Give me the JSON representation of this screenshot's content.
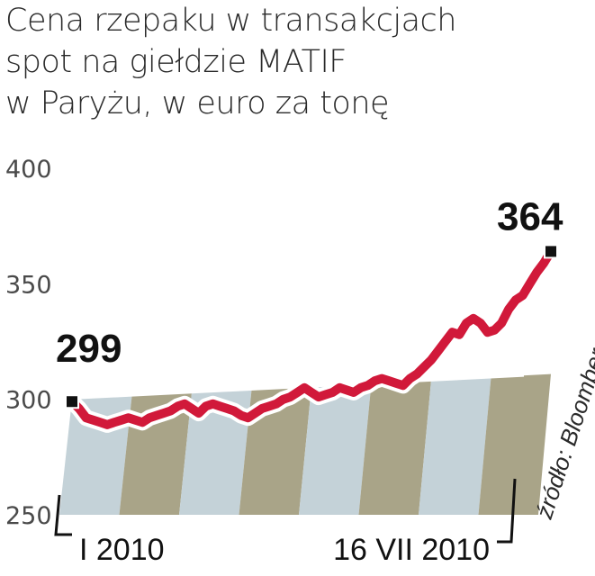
{
  "title_lines": [
    "Cena rzepaku w transakcjach",
    "spot na giełdzie MATIF",
    "w Paryżu, w euro za tonę"
  ],
  "source": "źródło: Bloomberg",
  "colors": {
    "line": "#d1193a",
    "marker": "#111111",
    "band_blue": "#c4d2d8",
    "band_olive": "#a9a488",
    "grid": "#ffffff",
    "axis": "#111111"
  },
  "chart_data": {
    "type": "line",
    "title": "Cena rzepaku w transakcjach spot na giełdzie MATIF w Paryżu, w euro za tonę",
    "ylim": [
      250,
      400
    ],
    "yticks": [
      400,
      350,
      300,
      250
    ],
    "x_labels": [
      "I 2010",
      "16 VII 2010"
    ],
    "start_label": "299",
    "end_label": "364",
    "series": [
      {
        "values": [
          299,
          296,
          292,
          291,
          290,
          289,
          290,
          291,
          292,
          291,
          290,
          292,
          293,
          294,
          295,
          297,
          298,
          296,
          294,
          297,
          298,
          297,
          296,
          295,
          293,
          292,
          294,
          296,
          297,
          298,
          300,
          301,
          303,
          305,
          303,
          301,
          302,
          303,
          305,
          304,
          303,
          305,
          306,
          308,
          309,
          308,
          307,
          306,
          309,
          311,
          314,
          317,
          321,
          325,
          329,
          328,
          333,
          335,
          333,
          329,
          330,
          333,
          339,
          343,
          345,
          350,
          355,
          359,
          364
        ]
      }
    ]
  }
}
